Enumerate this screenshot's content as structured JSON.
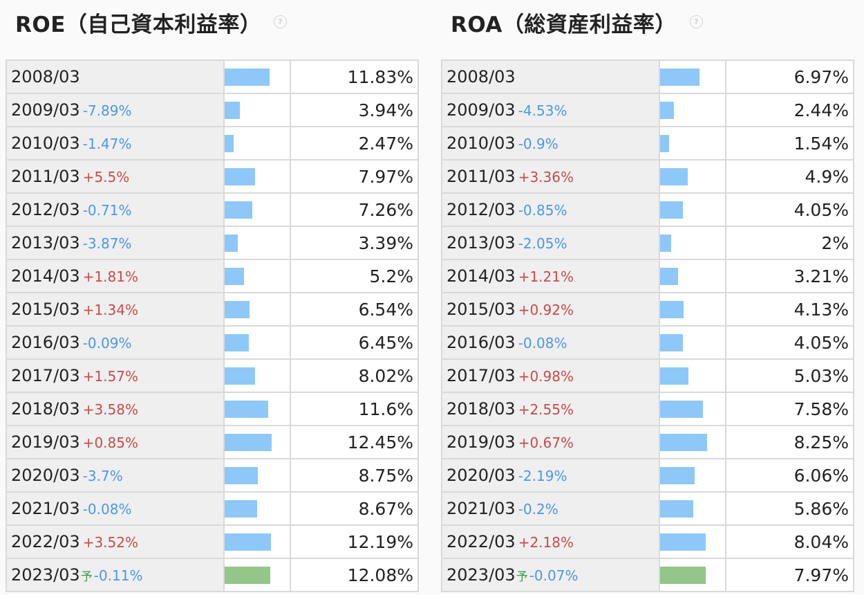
{
  "colors": {
    "bar": "#8ec8f8",
    "bar_forecast": "#93c688",
    "change_up": "#c84b4b",
    "change_down": "#4b97e8",
    "forecast_mark": "#3c9a4f"
  },
  "panels": [
    {
      "id": "roe",
      "title": "ROE（自己資本利益率）",
      "help_icon": "question-circle-icon",
      "help_glyph": "?",
      "max_value": 12.45,
      "rows": [
        {
          "year": "2008/03",
          "change": "",
          "value_text": "11.83%",
          "value": 11.83,
          "forecast": false
        },
        {
          "year": "2009/03",
          "change": "-7.89%",
          "value_text": "3.94%",
          "value": 3.94,
          "forecast": false
        },
        {
          "year": "2010/03",
          "change": "-1.47%",
          "value_text": "2.47%",
          "value": 2.47,
          "forecast": false
        },
        {
          "year": "2011/03",
          "change": "+5.5%",
          "value_text": "7.97%",
          "value": 7.97,
          "forecast": false
        },
        {
          "year": "2012/03",
          "change": "-0.71%",
          "value_text": "7.26%",
          "value": 7.26,
          "forecast": false
        },
        {
          "year": "2013/03",
          "change": "-3.87%",
          "value_text": "3.39%",
          "value": 3.39,
          "forecast": false
        },
        {
          "year": "2014/03",
          "change": "+1.81%",
          "value_text": "5.2%",
          "value": 5.2,
          "forecast": false
        },
        {
          "year": "2015/03",
          "change": "+1.34%",
          "value_text": "6.54%",
          "value": 6.54,
          "forecast": false
        },
        {
          "year": "2016/03",
          "change": "-0.09%",
          "value_text": "6.45%",
          "value": 6.45,
          "forecast": false
        },
        {
          "year": "2017/03",
          "change": "+1.57%",
          "value_text": "8.02%",
          "value": 8.02,
          "forecast": false
        },
        {
          "year": "2018/03",
          "change": "+3.58%",
          "value_text": "11.6%",
          "value": 11.6,
          "forecast": false
        },
        {
          "year": "2019/03",
          "change": "+0.85%",
          "value_text": "12.45%",
          "value": 12.45,
          "forecast": false
        },
        {
          "year": "2020/03",
          "change": "-3.7%",
          "value_text": "8.75%",
          "value": 8.75,
          "forecast": false
        },
        {
          "year": "2021/03",
          "change": "-0.08%",
          "value_text": "8.67%",
          "value": 8.67,
          "forecast": false
        },
        {
          "year": "2022/03",
          "change": "+3.52%",
          "value_text": "12.19%",
          "value": 12.19,
          "forecast": false
        },
        {
          "year": "2023/03",
          "forecast_label": "予",
          "change": "-0.11%",
          "value_text": "12.08%",
          "value": 12.08,
          "forecast": true
        }
      ]
    },
    {
      "id": "roa",
      "title": "ROA（総資産利益率）",
      "help_icon": "question-circle-icon",
      "help_glyph": "?",
      "max_value": 8.25,
      "rows": [
        {
          "year": "2008/03",
          "change": "",
          "value_text": "6.97%",
          "value": 6.97,
          "forecast": false
        },
        {
          "year": "2009/03",
          "change": "-4.53%",
          "value_text": "2.44%",
          "value": 2.44,
          "forecast": false
        },
        {
          "year": "2010/03",
          "change": "-0.9%",
          "value_text": "1.54%",
          "value": 1.54,
          "forecast": false
        },
        {
          "year": "2011/03",
          "change": "+3.36%",
          "value_text": "4.9%",
          "value": 4.9,
          "forecast": false
        },
        {
          "year": "2012/03",
          "change": "-0.85%",
          "value_text": "4.05%",
          "value": 4.05,
          "forecast": false
        },
        {
          "year": "2013/03",
          "change": "-2.05%",
          "value_text": "2%",
          "value": 2,
          "forecast": false
        },
        {
          "year": "2014/03",
          "change": "+1.21%",
          "value_text": "3.21%",
          "value": 3.21,
          "forecast": false
        },
        {
          "year": "2015/03",
          "change": "+0.92%",
          "value_text": "4.13%",
          "value": 4.13,
          "forecast": false
        },
        {
          "year": "2016/03",
          "change": "-0.08%",
          "value_text": "4.05%",
          "value": 4.05,
          "forecast": false
        },
        {
          "year": "2017/03",
          "change": "+0.98%",
          "value_text": "5.03%",
          "value": 5.03,
          "forecast": false
        },
        {
          "year": "2018/03",
          "change": "+2.55%",
          "value_text": "7.58%",
          "value": 7.58,
          "forecast": false
        },
        {
          "year": "2019/03",
          "change": "+0.67%",
          "value_text": "8.25%",
          "value": 8.25,
          "forecast": false
        },
        {
          "year": "2020/03",
          "change": "-2.19%",
          "value_text": "6.06%",
          "value": 6.06,
          "forecast": false
        },
        {
          "year": "2021/03",
          "change": "-0.2%",
          "value_text": "5.86%",
          "value": 5.86,
          "forecast": false
        },
        {
          "year": "2022/03",
          "change": "+2.18%",
          "value_text": "8.04%",
          "value": 8.04,
          "forecast": false
        },
        {
          "year": "2023/03",
          "forecast_label": "予",
          "change": "-0.07%",
          "value_text": "7.97%",
          "value": 7.97,
          "forecast": true
        }
      ]
    }
  ]
}
